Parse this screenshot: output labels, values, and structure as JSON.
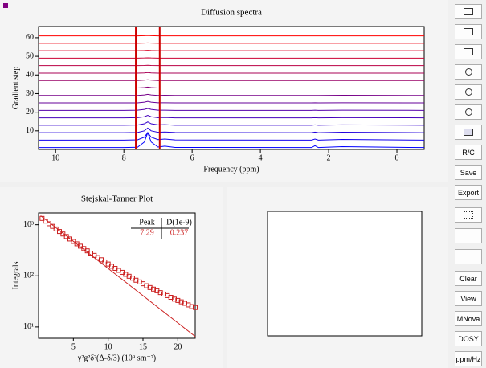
{
  "chart_data": [
    {
      "type": "line",
      "title": "Diffusion spectra",
      "xlabel": "Frequency (ppm)",
      "ylabel": "Gradient step",
      "xlim": [
        10.5,
        -0.8
      ],
      "xticks": [
        10,
        8,
        6,
        4,
        2,
        0
      ],
      "ylim": [
        0,
        66
      ],
      "yticks": [
        10,
        20,
        30,
        40,
        50,
        60
      ],
      "x": [
        10.5,
        8,
        7.6,
        7.4,
        7.3,
        7.2,
        7.0,
        6.8,
        6.5,
        2.5,
        2.4,
        2.3,
        1.6,
        -0.8
      ],
      "series": [
        {
          "color": "#0000ff",
          "values": [
            1,
            1,
            1.2,
            4,
            9,
            4,
            1.3,
            1.8,
            1.1,
            1,
            2,
            1,
            1.5,
            1
          ]
        },
        {
          "color": "#1100ee",
          "values": [
            5,
            5,
            5.2,
            6.6,
            9,
            6.6,
            5.3,
            5.6,
            5.1,
            5,
            5.6,
            5,
            5.4,
            5
          ]
        },
        {
          "color": "#2200dd",
          "values": [
            9,
            9,
            9.1,
            10,
            11.5,
            10,
            9.2,
            9.4,
            9.1,
            9,
            9.3,
            9,
            9.3,
            9
          ]
        },
        {
          "color": "#3300cc",
          "values": [
            13,
            13,
            13.1,
            13.8,
            14.8,
            13.8,
            13.2,
            13.3,
            13,
            13,
            13.2,
            13,
            13.2,
            13
          ]
        },
        {
          "color": "#4400bb",
          "values": [
            17,
            17,
            17.1,
            17.6,
            18.3,
            17.6,
            17.1,
            17.2,
            17,
            17,
            17.1,
            17,
            17.1,
            17
          ]
        },
        {
          "color": "#5500aa",
          "values": [
            21,
            21,
            21.1,
            21.5,
            22,
            21.5,
            21.1,
            21.1,
            21,
            21,
            21.1,
            21,
            21.1,
            21
          ]
        },
        {
          "color": "#660099",
          "values": [
            25,
            25,
            25,
            25.4,
            25.8,
            25.4,
            25.1,
            25.1,
            25,
            25,
            25.1,
            25,
            25.1,
            25
          ]
        },
        {
          "color": "#770088",
          "values": [
            29,
            29,
            29,
            29.3,
            29.6,
            29.3,
            29,
            29.1,
            29,
            29,
            29,
            29,
            29.1,
            29
          ]
        },
        {
          "color": "#880077",
          "values": [
            33,
            33,
            33,
            33.2,
            33.5,
            33.2,
            33,
            33,
            33,
            33,
            33,
            33,
            33,
            33
          ]
        },
        {
          "color": "#990066",
          "values": [
            37,
            37,
            37,
            37.2,
            37.4,
            37.2,
            37,
            37,
            37,
            37,
            37,
            37,
            37,
            37
          ]
        },
        {
          "color": "#aa0055",
          "values": [
            41,
            41,
            41,
            41.1,
            41.3,
            41.1,
            41,
            41,
            41,
            41,
            41,
            41,
            41,
            41
          ]
        },
        {
          "color": "#bb0044",
          "values": [
            45,
            45,
            45,
            45.1,
            45.2,
            45.1,
            45,
            45,
            45,
            45,
            45,
            45,
            45,
            45
          ]
        },
        {
          "color": "#cc0033",
          "values": [
            49,
            49,
            49,
            49.1,
            49.2,
            49.1,
            49,
            49,
            49,
            49,
            49,
            49,
            49,
            49
          ]
        },
        {
          "color": "#dd0022",
          "values": [
            53,
            53,
            53,
            53.1,
            53.2,
            53.1,
            53,
            53,
            53,
            53,
            53,
            53,
            53,
            53
          ]
        },
        {
          "color": "#ee0011",
          "values": [
            57,
            57,
            57,
            57.1,
            57.2,
            57.1,
            57,
            57,
            57,
            57,
            57,
            57,
            57,
            57
          ]
        },
        {
          "color": "#ff0000",
          "values": [
            61,
            61,
            61,
            61.1,
            61.2,
            61.1,
            61,
            61,
            61,
            61,
            61,
            61,
            61,
            61
          ]
        }
      ],
      "markers": {
        "color": "#cc0000",
        "values": [
          7.65,
          6.95
        ]
      }
    },
    {
      "type": "scatter",
      "title": "Stejskal-Tanner Plot",
      "xlabel": "γ²g²δ²(Δ-δ/3) (10⁹ sm⁻²)",
      "ylabel": "Integrals",
      "log_y": true,
      "color": "#cc2222",
      "xlim": [
        0,
        22.5
      ],
      "xticks": [
        5,
        10,
        15,
        20
      ],
      "ylim": [
        6,
        1700
      ],
      "yticks": [
        {
          "value": 10,
          "label": "10¹"
        },
        {
          "value": 100,
          "label": "10²"
        },
        {
          "value": 1000,
          "label": "10³"
        }
      ],
      "x": [
        0.5,
        1,
        1.5,
        2,
        2.5,
        3,
        3.5,
        4,
        4.5,
        5,
        5.5,
        6,
        6.5,
        7,
        7.5,
        8,
        8.5,
        9,
        9.5,
        10,
        10.5,
        11,
        11.5,
        12,
        12.5,
        13,
        13.5,
        14,
        14.5,
        15,
        15.5,
        16,
        16.5,
        17,
        17.5,
        18,
        18.5,
        19,
        19.5,
        20,
        20.5,
        21,
        21.5,
        22,
        22.5
      ],
      "values": [
        1328,
        1177,
        1045,
        929,
        827,
        737,
        658,
        588,
        526,
        471,
        423,
        380,
        342,
        308,
        278,
        251,
        227,
        206,
        187,
        170,
        154,
        140,
        128,
        117,
        107,
        98,
        90,
        82,
        76,
        70,
        64,
        59,
        55,
        51,
        47,
        44,
        41,
        38,
        35,
        33,
        31,
        29,
        27,
        25,
        24
      ],
      "fit": {
        "color": "#cc2222",
        "x": [
          0.3,
          22.5
        ],
        "values": [
          1500,
          6.5
        ]
      },
      "table": {
        "header": [
          "Peak",
          "D(1e-9)"
        ],
        "rows": [
          [
            7.29,
            0.237
          ]
        ]
      }
    }
  ],
  "toolbar": {
    "buttons": [
      "R/C",
      "Save",
      "Export",
      "Clear",
      "View",
      "MNova",
      "DOSY",
      "ppm/Hz"
    ]
  }
}
